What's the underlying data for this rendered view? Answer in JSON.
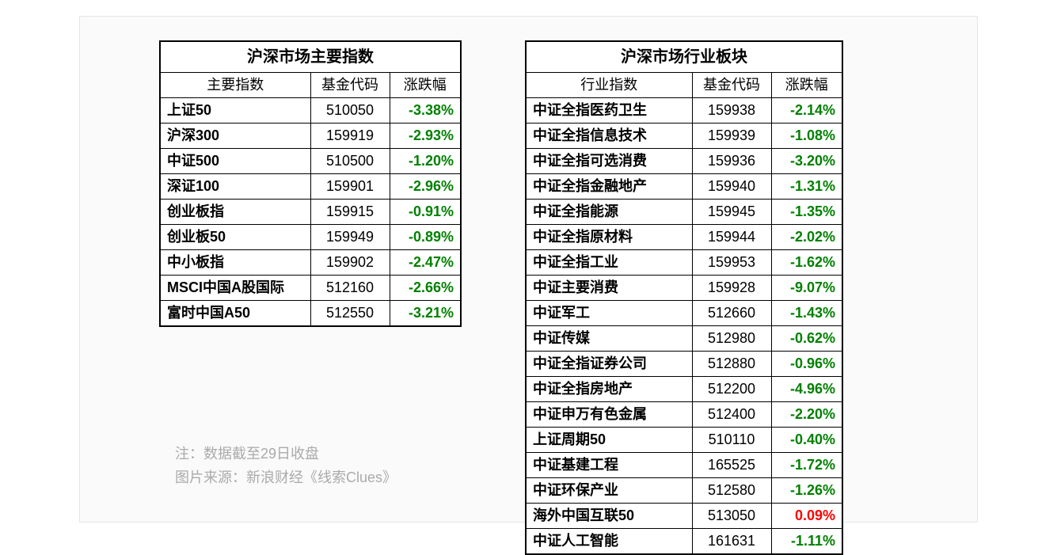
{
  "colors": {
    "negative": "#008000",
    "positive": "#ff0000",
    "border": "#000000",
    "footnote": "#aaaaaa",
    "container_border": "#e5e5e5",
    "container_bg": "#fafafa"
  },
  "table1": {
    "title": "沪深市场主要指数",
    "columns": [
      "主要指数",
      "基金代码",
      "涨跌幅"
    ],
    "rows": [
      {
        "name": "上证50",
        "code": "510050",
        "change": "-3.38%",
        "sign": "neg"
      },
      {
        "name": "沪深300",
        "code": "159919",
        "change": "-2.93%",
        "sign": "neg"
      },
      {
        "name": "中证500",
        "code": "510500",
        "change": "-1.20%",
        "sign": "neg"
      },
      {
        "name": "深证100",
        "code": "159901",
        "change": "-2.96%",
        "sign": "neg"
      },
      {
        "name": "创业板指",
        "code": "159915",
        "change": "-0.91%",
        "sign": "neg"
      },
      {
        "name": "创业板50",
        "code": "159949",
        "change": "-0.89%",
        "sign": "neg"
      },
      {
        "name": "中小板指",
        "code": "159902",
        "change": "-2.47%",
        "sign": "neg"
      },
      {
        "name": "MSCI中国A股国际",
        "code": "512160",
        "change": "-2.66%",
        "sign": "neg"
      },
      {
        "name": "富时中国A50",
        "code": "512550",
        "change": "-3.21%",
        "sign": "neg"
      }
    ]
  },
  "table2": {
    "title": "沪深市场行业板块",
    "columns": [
      "行业指数",
      "基金代码",
      "涨跌幅"
    ],
    "rows": [
      {
        "name": "中证全指医药卫生",
        "code": "159938",
        "change": "-2.14%",
        "sign": "neg"
      },
      {
        "name": "中证全指信息技术",
        "code": "159939",
        "change": "-1.08%",
        "sign": "neg"
      },
      {
        "name": "中证全指可选消费",
        "code": "159936",
        "change": "-3.20%",
        "sign": "neg"
      },
      {
        "name": "中证全指金融地产",
        "code": "159940",
        "change": "-1.31%",
        "sign": "neg"
      },
      {
        "name": "中证全指能源",
        "code": "159945",
        "change": "-1.35%",
        "sign": "neg"
      },
      {
        "name": "中证全指原材料",
        "code": "159944",
        "change": "-2.02%",
        "sign": "neg"
      },
      {
        "name": "中证全指工业",
        "code": "159953",
        "change": "-1.62%",
        "sign": "neg"
      },
      {
        "name": "中证主要消费",
        "code": "159928",
        "change": "-9.07%",
        "sign": "neg"
      },
      {
        "name": "中证军工",
        "code": "512660",
        "change": "-1.43%",
        "sign": "neg"
      },
      {
        "name": "中证传媒",
        "code": "512980",
        "change": "-0.62%",
        "sign": "neg"
      },
      {
        "name": "中证全指证券公司",
        "code": "512880",
        "change": "-0.96%",
        "sign": "neg"
      },
      {
        "name": "中证全指房地产",
        "code": "512200",
        "change": "-4.96%",
        "sign": "neg"
      },
      {
        "name": "中证申万有色金属",
        "code": "512400",
        "change": "-2.20%",
        "sign": "neg"
      },
      {
        "name": "上证周期50",
        "code": "510110",
        "change": "-0.40%",
        "sign": "neg"
      },
      {
        "name": "中证基建工程",
        "code": "165525",
        "change": "-1.72%",
        "sign": "neg"
      },
      {
        "name": "中证环保产业",
        "code": "512580",
        "change": "-1.26%",
        "sign": "neg"
      },
      {
        "name": "海外中国互联50",
        "code": "513050",
        "change": "0.09%",
        "sign": "pos"
      },
      {
        "name": "中证人工智能",
        "code": "161631",
        "change": "-1.11%",
        "sign": "neg"
      }
    ]
  },
  "footnote": {
    "line1": "注：数据截至29日收盘",
    "line2": "图片来源：新浪财经《线索Clues》"
  }
}
